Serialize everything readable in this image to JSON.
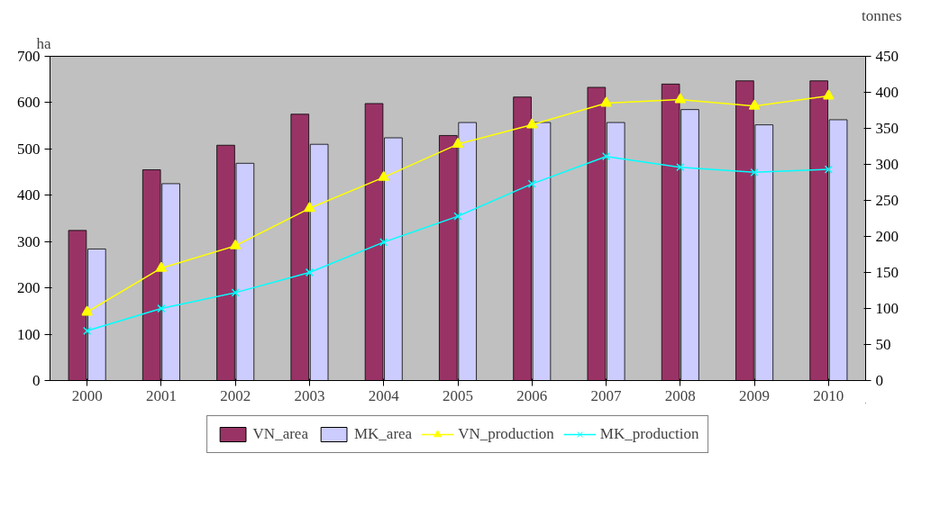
{
  "chart_data": {
    "type": "bar",
    "ylabel": "ha",
    "y2label": "tonnes",
    "categories": [
      "2000",
      "2001",
      "2002",
      "2003",
      "2004",
      "2005",
      "2006",
      "2007",
      "2008",
      "2009",
      "2010"
    ],
    "series": [
      {
        "name": "VN_area",
        "color": "#993366",
        "values": [
          324,
          455,
          508,
          575,
          598,
          529,
          612,
          633,
          640,
          647,
          647
        ]
      },
      {
        "name": "MK_area",
        "color": "#ccccff",
        "values": [
          284,
          425,
          469,
          510,
          524,
          557,
          557,
          557,
          585,
          552,
          563
        ]
      },
      {
        "name": "VN_production",
        "type": "line",
        "axis": "y2",
        "marker": "triangle",
        "color": "#ffff00",
        "values": [
          95,
          156,
          187,
          239,
          282,
          328,
          355,
          385,
          390,
          381,
          395
        ]
      },
      {
        "name": "MK_production",
        "type": "line",
        "axis": "y2",
        "marker": "cross",
        "color": "#00ffff",
        "values": [
          69,
          100,
          122,
          150,
          192,
          228,
          273,
          311,
          296,
          289,
          293
        ]
      }
    ],
    "ylim": [
      0,
      700
    ],
    "yticks": [
      0,
      100,
      200,
      300,
      400,
      500,
      600,
      700
    ],
    "y2lim": [
      0,
      450
    ],
    "y2ticks": [
      0,
      50,
      100,
      150,
      200,
      250,
      300,
      350,
      400,
      450
    ],
    "grid": false,
    "legend": "bottom"
  }
}
